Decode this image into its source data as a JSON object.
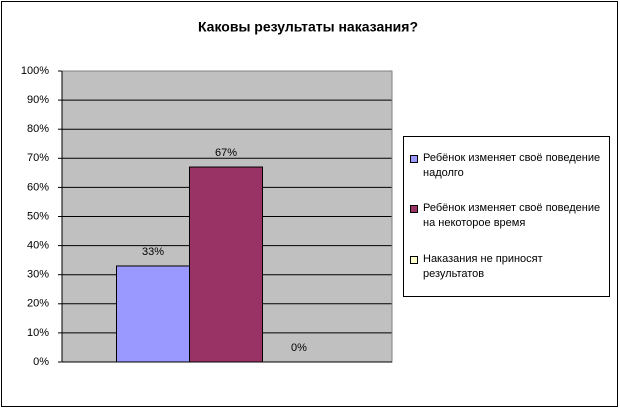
{
  "chart_data": {
    "type": "bar",
    "title": "Каковы результаты наказания?",
    "categories": [
      null
    ],
    "series": [
      {
        "name": "Ребёнок изменяет своё поведение надолго",
        "color": "#9999ff",
        "values": [
          33
        ],
        "value_labels": [
          "33%"
        ]
      },
      {
        "name": "Ребёнок изменяет своё поведение на некоторое время",
        "color": "#993366",
        "values": [
          67
        ],
        "value_labels": [
          "67%"
        ]
      },
      {
        "name": "Наказания не приносят результатов",
        "color": "#ffffcc",
        "values": [
          0
        ],
        "value_labels": [
          "0%"
        ]
      }
    ],
    "ylim": [
      0,
      100
    ],
    "yticks": [
      {
        "value": 0,
        "label": "0%"
      },
      {
        "value": 10,
        "label": "10%"
      },
      {
        "value": 20,
        "label": "20%"
      },
      {
        "value": 30,
        "label": "30%"
      },
      {
        "value": 40,
        "label": "40%"
      },
      {
        "value": 50,
        "label": "50%"
      },
      {
        "value": 60,
        "label": "60%"
      },
      {
        "value": 70,
        "label": "70%"
      },
      {
        "value": 80,
        "label": "80%"
      },
      {
        "value": 90,
        "label": "90%"
      },
      {
        "value": 100,
        "label": "100%"
      }
    ],
    "grid": true,
    "legend": "right"
  }
}
